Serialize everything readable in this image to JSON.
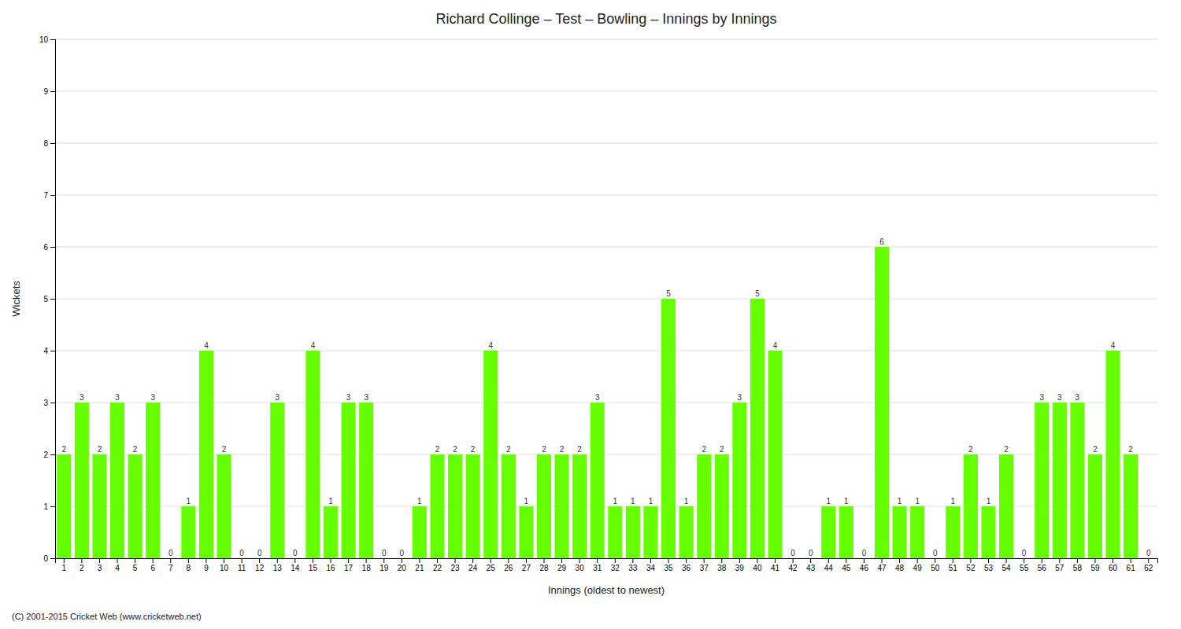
{
  "chart_data": {
    "type": "bar",
    "title": "Richard Collinge – Test – Bowling – Innings by Innings",
    "xlabel": "Innings (oldest to newest)",
    "ylabel": "Wickets",
    "footer": "(C) 2001-2015 Cricket Web (www.cricketweb.net)",
    "categories": [
      "1",
      "2",
      "3",
      "4",
      "5",
      "6",
      "7",
      "8",
      "9",
      "10",
      "11",
      "12",
      "13",
      "14",
      "15",
      "16",
      "17",
      "18",
      "19",
      "20",
      "21",
      "22",
      "23",
      "24",
      "25",
      "26",
      "27",
      "28",
      "29",
      "30",
      "31",
      "32",
      "33",
      "34",
      "35",
      "36",
      "37",
      "38",
      "39",
      "40",
      "41",
      "42",
      "43",
      "44",
      "45",
      "46",
      "47",
      "48",
      "49",
      "50",
      "51",
      "52",
      "53",
      "54",
      "55",
      "56",
      "57",
      "58",
      "59",
      "60",
      "61",
      "62"
    ],
    "values": [
      2,
      3,
      2,
      3,
      2,
      3,
      0,
      1,
      4,
      2,
      0,
      0,
      3,
      0,
      4,
      1,
      3,
      3,
      0,
      0,
      1,
      2,
      2,
      2,
      4,
      2,
      1,
      2,
      2,
      2,
      3,
      1,
      1,
      1,
      5,
      1,
      2,
      2,
      3,
      5,
      4,
      0,
      0,
      1,
      1,
      0,
      6,
      1,
      1,
      0,
      1,
      2,
      1,
      2,
      0,
      3,
      3,
      3,
      2,
      4,
      2,
      0
    ],
    "color": "#66ff00",
    "ylim": [
      0,
      10
    ],
    "yticks": [
      0,
      1,
      2,
      3,
      4,
      5,
      6,
      7,
      8,
      9,
      10
    ],
    "grid": true,
    "data_labels": true
  }
}
